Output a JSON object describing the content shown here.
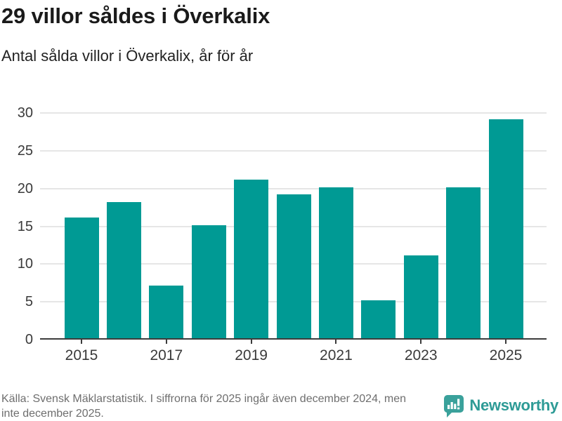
{
  "header": {
    "title": "29 villor såldes i Överkalix",
    "subtitle": "Antal sålda villor i Överkalix, år för år"
  },
  "chart_data": {
    "type": "bar",
    "title": "29 villor såldes i Överkalix",
    "subtitle": "Antal sålda villor i Överkalix, år för år",
    "categories": [
      "2015",
      "2016",
      "2017",
      "2018",
      "2019",
      "2020",
      "2021",
      "2022",
      "2023",
      "2024",
      "2025"
    ],
    "values": [
      16,
      18,
      7,
      15,
      21,
      19,
      20,
      5,
      11,
      20,
      29
    ],
    "xlabel": "",
    "ylabel": "",
    "ylim": [
      0,
      30
    ],
    "yticks": [
      0,
      5,
      10,
      15,
      20,
      25,
      30
    ],
    "xtick_labels_shown": [
      "2015",
      "2017",
      "2019",
      "2021",
      "2023",
      "2025"
    ],
    "grid": true,
    "legend": false,
    "bar_color": "#009a94"
  },
  "footer": {
    "source_line1": "Källa: Svensk Mäklarstatistik. I siffrorna för 2025 ingår även december 2024, men",
    "source_line2": "inte december 2025.",
    "brand_name": "Newsworthy"
  },
  "colors": {
    "bar": "#009a94",
    "brand": "#2e9b96",
    "grid": "#e6e6e6",
    "axis": "#3c3c3c",
    "muted_text": "#6e6e6e"
  }
}
